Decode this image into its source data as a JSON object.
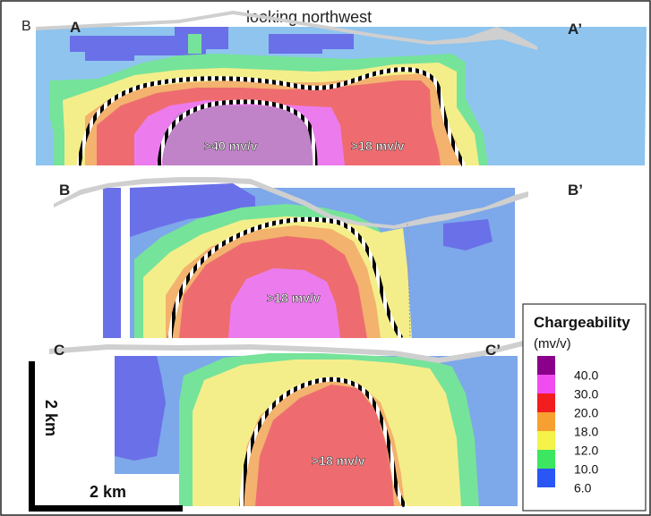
{
  "figure": {
    "panel_letter": "B",
    "view_direction": "looking northwest",
    "sections": [
      {
        "start": "A",
        "end": "A’",
        "annotations": [
          ">40 mv/v",
          ">18 mv/v"
        ]
      },
      {
        "start": "B",
        "end": "B’",
        "annotations": [
          ">18 mv/v"
        ]
      },
      {
        "start": "C",
        "end": "C’",
        "annotations": [
          ">18 mv/v"
        ]
      }
    ],
    "scale_vertical": "2 km",
    "scale_horizontal": "2 km"
  },
  "legend": {
    "title": "Chargeability",
    "unit": "(mv/v)",
    "entries": [
      {
        "label": "40.0",
        "color": "#8a008a"
      },
      {
        "label": "30.0",
        "color": "#f04cf0"
      },
      {
        "label": "20.0",
        "color": "#f21e1e"
      },
      {
        "label": "18.0",
        "color": "#f5a030"
      },
      {
        "label": "12.0",
        "color": "#f3f34a"
      },
      {
        "label": "10.0",
        "color": "#3ce660"
      },
      {
        "label": "6.0",
        "color": "#2a56f5"
      }
    ]
  },
  "colors": {
    "light_blue": "#8ec4ee",
    "mid_blue": "#7da8ea",
    "dark_blue": "#6a70e8",
    "green": "#76e39a",
    "yellow": "#f4ee8a",
    "orange": "#f3b26e",
    "red": "#ee6c70",
    "magenta": "#ec7ced",
    "purple": "#c083c8",
    "topo_gray": "#cfcfcf"
  }
}
